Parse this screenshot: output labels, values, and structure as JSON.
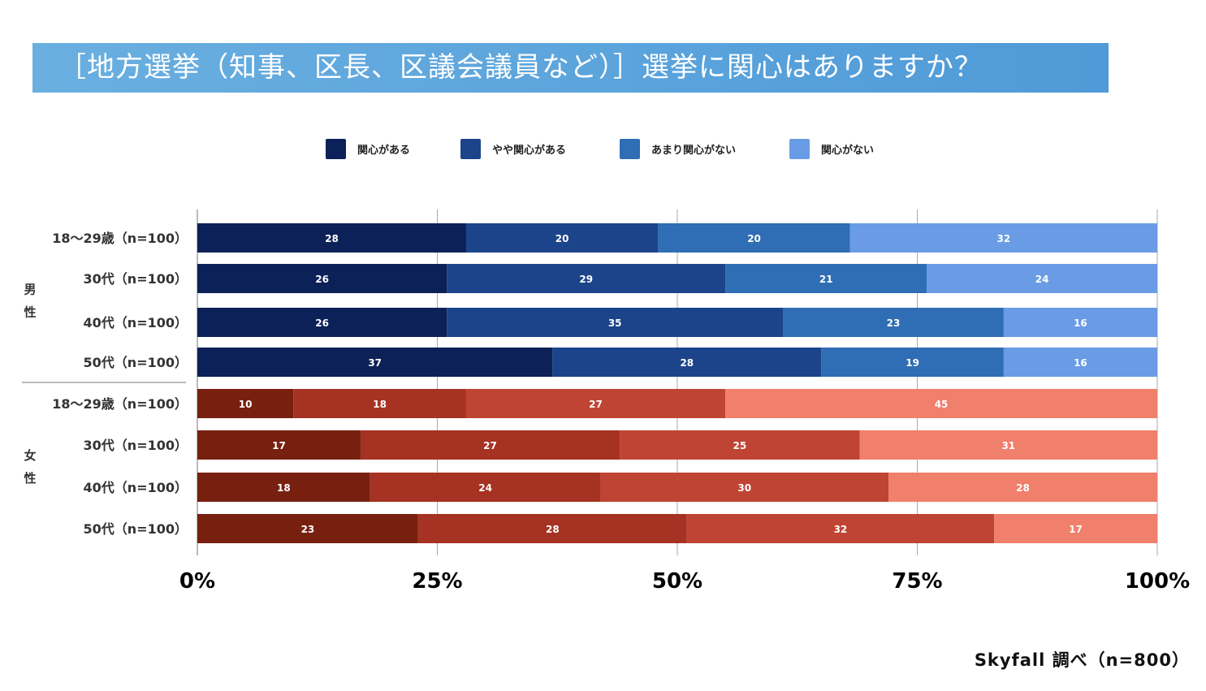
{
  "title": "［地方選挙（知事、区長、区議会議員など）］選挙に関心はありますか？",
  "source": "Skyfall 調べ（n=800）",
  "chart_data": {
    "type": "bar",
    "orientation": "horizontal-stacked-100",
    "title": "［地方選挙（知事、区長、区議会議員など）］選挙に関心はありますか？",
    "legend": [
      "関心がある",
      "やや関心がある",
      "あまり関心がない",
      "関心がない"
    ],
    "legend_position": "top",
    "xlim": [
      0,
      100
    ],
    "x_ticks": [
      "0%",
      "25%",
      "50%",
      "75%",
      "100%"
    ],
    "grid": true,
    "groups": [
      {
        "name": "男性",
        "colors": [
          "#0c2157",
          "#1c448a",
          "#2f6db5",
          "#6a9be5"
        ],
        "rows": [
          {
            "label": "18〜29歳（n=100）",
            "values": [
              28,
              20,
              20,
              32
            ]
          },
          {
            "label": "30代（n=100）",
            "values": [
              26,
              29,
              21,
              24
            ]
          },
          {
            "label": "40代（n=100）",
            "values": [
              26,
              35,
              23,
              16
            ]
          },
          {
            "label": "50代（n=100）",
            "values": [
              37,
              28,
              19,
              16
            ]
          }
        ]
      },
      {
        "name": "女性",
        "colors": [
          "#78200f",
          "#a53222",
          "#c04433",
          "#f07f6b"
        ],
        "rows": [
          {
            "label": "18〜29歳（n=100）",
            "values": [
              10,
              18,
              27,
              45
            ]
          },
          {
            "label": "30代（n=100）",
            "values": [
              17,
              27,
              25,
              31
            ]
          },
          {
            "label": "40代（n=100）",
            "values": [
              18,
              24,
              30,
              28
            ]
          },
          {
            "label": "50代（n=100）",
            "values": [
              23,
              28,
              32,
              17
            ]
          }
        ]
      }
    ]
  }
}
